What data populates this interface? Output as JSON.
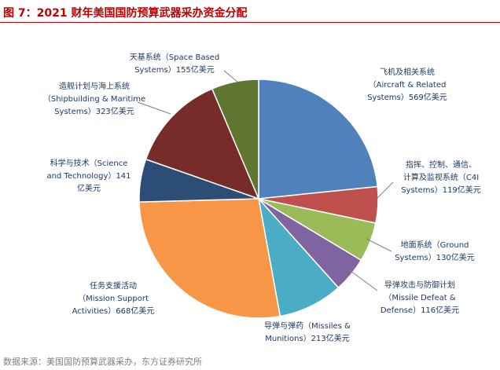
{
  "figure_title": "图 7：2021 财年美国国防预算武器采办资金分配",
  "source_note": "数据来源：美国国防预算武器采办，东方证券研究所",
  "chart_data": {
    "type": "pie",
    "title": "图 7：2021 财年美国国防预算武器采办资金分配",
    "unit": "亿美元",
    "categories": [
      "飞机及相关系统（Aircraft & Related Systems）",
      "指挥、控制、通信、计算及监视系统（C4I Systems）",
      "地面系统（Ground Systems）",
      "导弹攻击与防御计划（Missile Defeat & Defense）",
      "导弹与弹药（Missiles & Munitions）",
      "任务支援活动（Mission Support Activities）",
      "科学与技术（Science and Technology）",
      "造舰计划与海上系统（Shipbuilding & Maritime Systems）",
      "天基系统（Space Based Systems）"
    ],
    "values": [
      569,
      119,
      130,
      116,
      213,
      668,
      141,
      323,
      155
    ],
    "colors": [
      "#4f81bd",
      "#c0504d",
      "#9bbb59",
      "#8064a2",
      "#4bacc6",
      "#f79646",
      "#2c4d75",
      "#772c2a",
      "#5f7530"
    ],
    "labels": [
      [
        "飞机及相关系统",
        "（Aircraft & Related",
        "Systems）569亿美元"
      ],
      [
        "指挥、控制、通信、",
        "计算及监视系统（C4I",
        "Systems）119亿美元"
      ],
      [
        "地面系统（Ground",
        "Systems）130亿美元"
      ],
      [
        "导弹攻击与防御计划",
        "（Missile Defeat &",
        "Defense）116亿美元"
      ],
      [
        "导弹与弹药（Missiles &",
        "Munitions）213亿美元"
      ],
      [
        "任务支援活动",
        "（Mission Support",
        "Activities）668亿美元"
      ],
      [
        "科学与技术（Science",
        "and Technology）141",
        "亿美元"
      ],
      [
        "造舰计划与海上系统",
        "（Shipbuilding & Maritime",
        "Systems）323亿美元"
      ],
      [
        "天基系统（Space Based",
        "Systems）155亿美元"
      ]
    ]
  }
}
